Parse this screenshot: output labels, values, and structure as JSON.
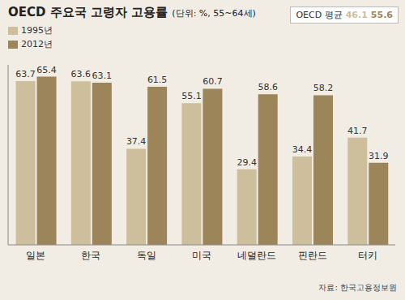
{
  "chart_data": {
    "type": "bar",
    "title": "OECD 주요국 고령자 고용률",
    "subtitle": "(단위: %, 55~64세)",
    "categories": [
      "일본",
      "한국",
      "독일",
      "미국",
      "네덜란드",
      "핀란드",
      "터키"
    ],
    "series": [
      {
        "name": "1995년",
        "color": "#cdbf9c",
        "values": [
          63.7,
          63.6,
          37.4,
          55.1,
          29.4,
          34.4,
          41.7
        ]
      },
      {
        "name": "2012년",
        "color": "#9c8558",
        "values": [
          65.4,
          63.1,
          61.5,
          60.7,
          58.6,
          58.2,
          31.9
        ]
      }
    ],
    "oecd_average": {
      "label": "OECD 평균",
      "values": [
        46.1,
        55.6
      ]
    },
    "ylim": [
      0,
      70
    ],
    "grid": false,
    "legend": "upper left",
    "data_labels": true,
    "tick_labels": "x",
    "source": "자료: 한국고용정보원"
  }
}
